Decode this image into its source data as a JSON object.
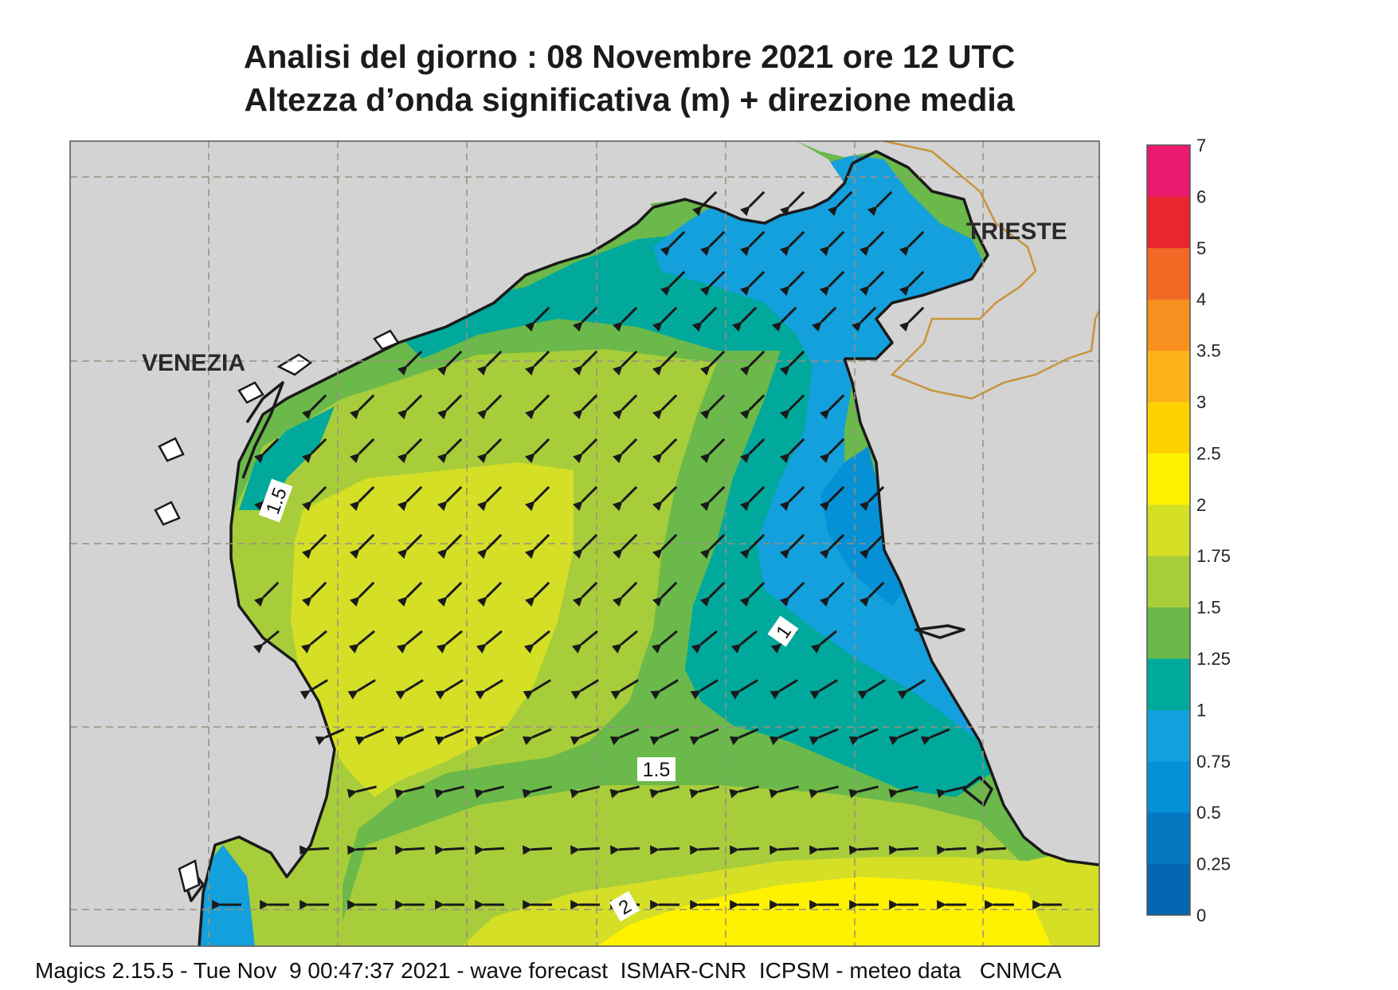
{
  "header": {
    "title_line1": "Analisi del giorno :  08 Novembre  2021    ore 12 UTC",
    "title_line2": "Altezza d’onda significativa (m) + direzione media"
  },
  "map": {
    "cities": [
      "VENEZIA",
      "TRIESTE"
    ],
    "contour_labels": [
      "1.5",
      "1",
      "1.5",
      "2"
    ],
    "colors": {
      "land": "#d3d3d3",
      "coast": "#1a1a1a",
      "border": "#c8943a",
      "grid": "#9a8f80",
      "arrow": "#1a1a1a"
    }
  },
  "legend": {
    "labels": [
      "7",
      "6",
      "5",
      "4",
      "3.5",
      "3",
      "2.5",
      "2",
      "1.75",
      "1.5",
      "1.25",
      "1",
      "0.75",
      "0.5",
      "0.25",
      "0"
    ],
    "colors": [
      "#ec1a6e",
      "#e8262e",
      "#f06a26",
      "#f7901e",
      "#fbb317",
      "#fdd200",
      "#fff200",
      "#d4df26",
      "#a8cd3a",
      "#6ab94a",
      "#00a99c",
      "#14a0dd",
      "#0690d6",
      "#0479c2",
      "#0466b0"
    ]
  },
  "footer": {
    "text": "Magics 2.15.5 - Tue Nov  9 00:47:37 2021 - wave forecast  ISMAR-CNR  ICPSM - meteo data   CNMCA"
  }
}
